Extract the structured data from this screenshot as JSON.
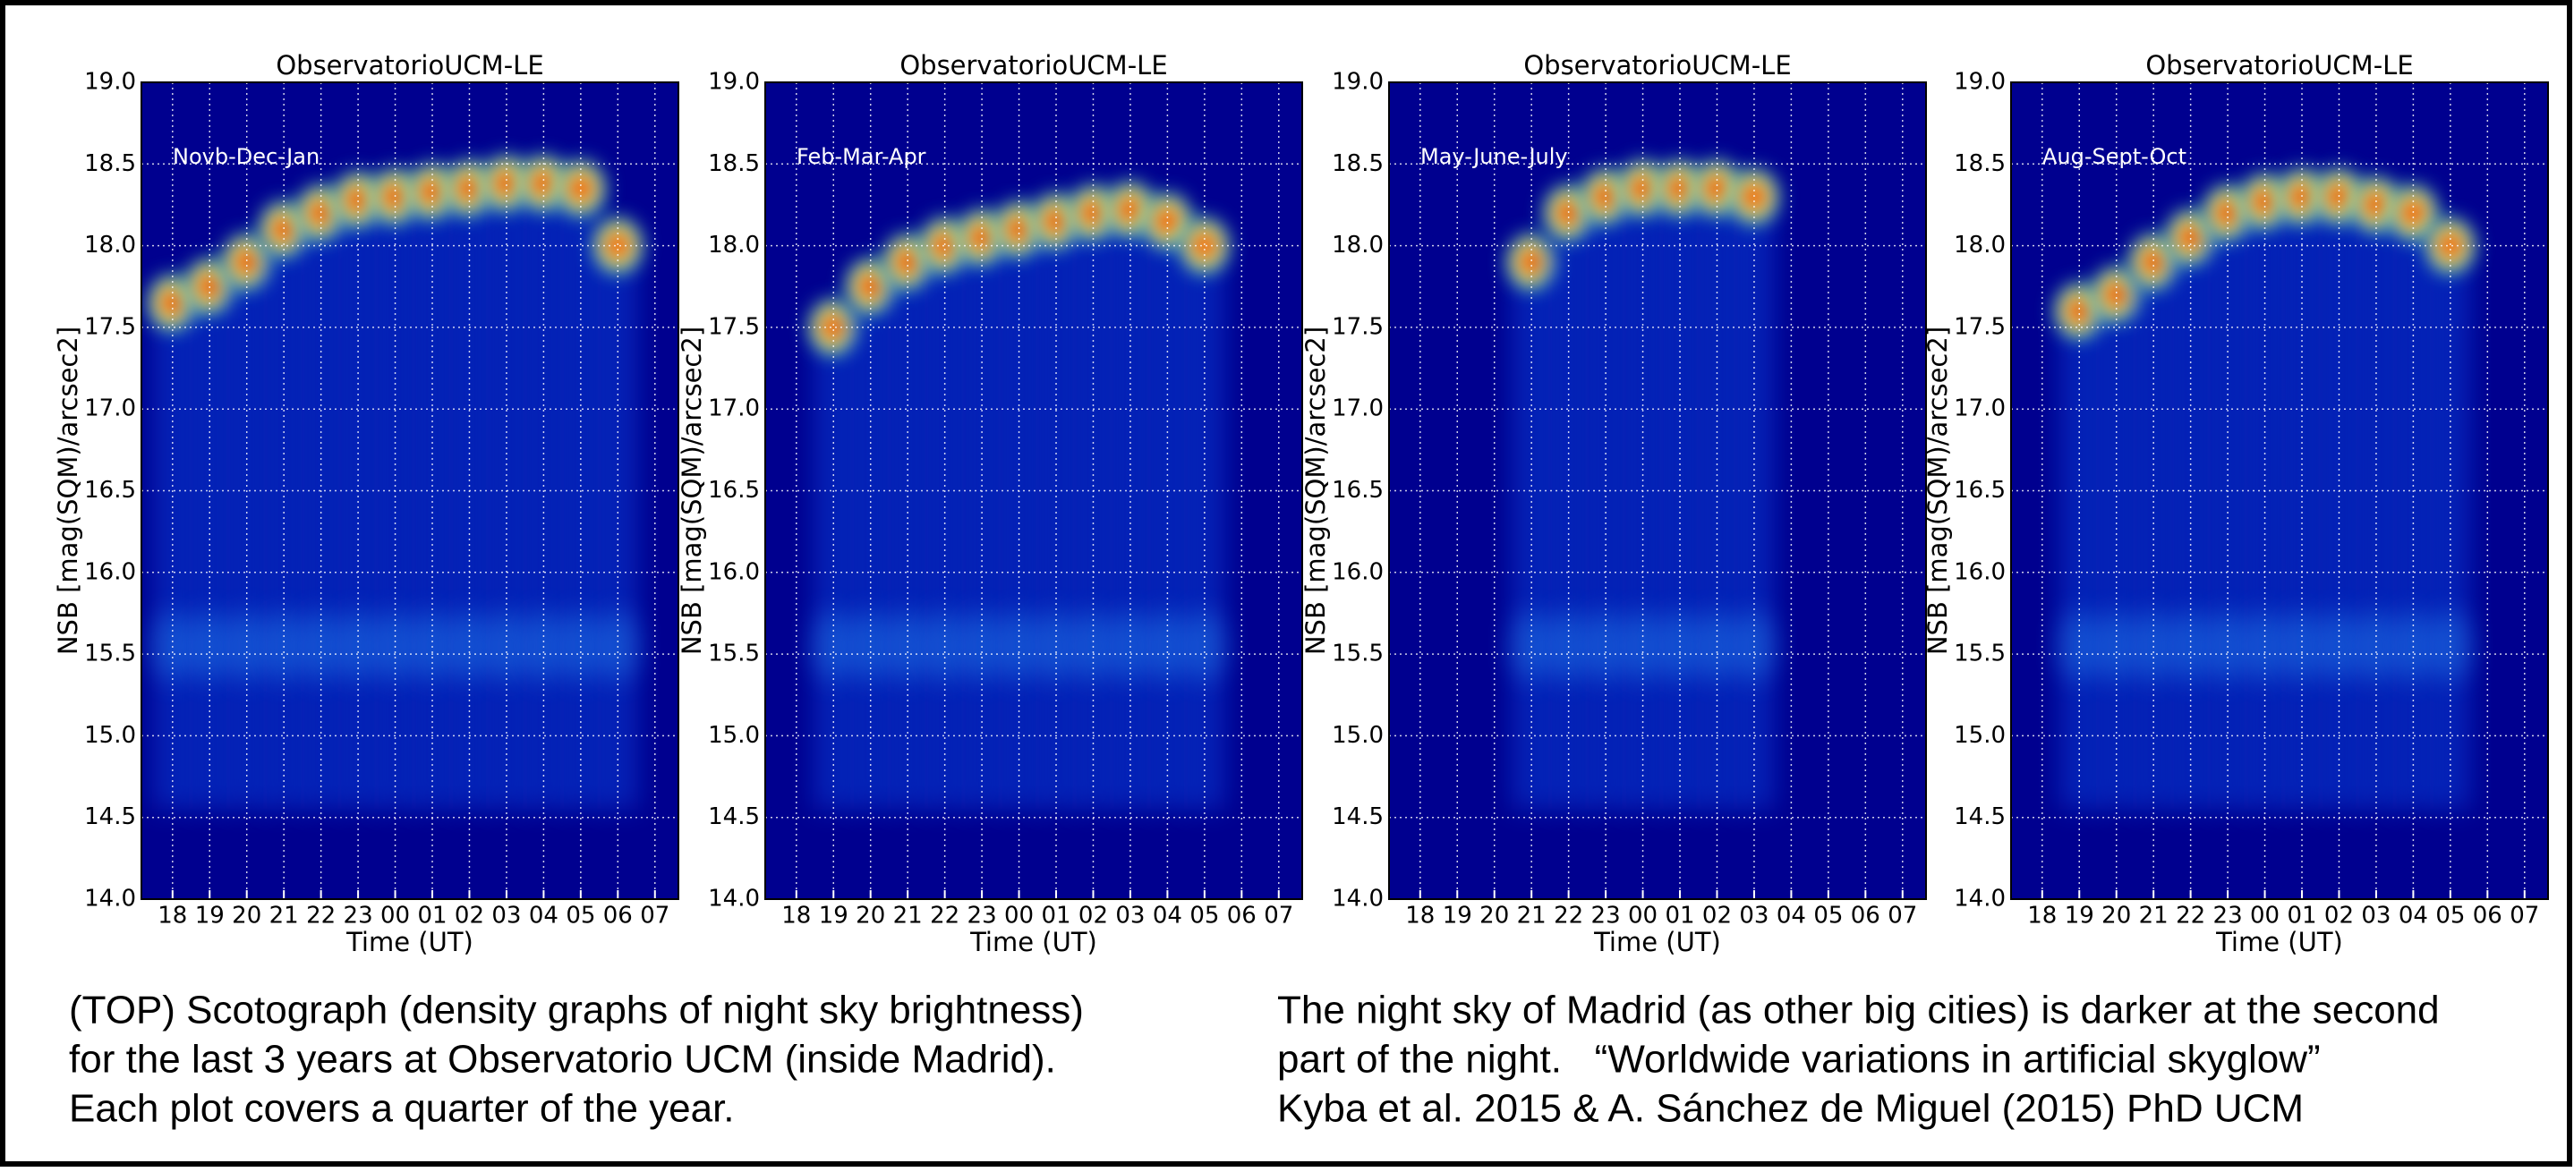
{
  "chart_data": [
    {
      "type": "density",
      "title": "ObservatorioUCM-LE",
      "annotation": "Novb-Dec-Jan",
      "ylabel": "NSB [mag(SQM)/arcsec2]",
      "xlabel": "Time (UT)",
      "categories": [
        "18",
        "19",
        "20",
        "21",
        "22",
        "23",
        "00",
        "01",
        "02",
        "03",
        "04",
        "05",
        "06",
        "07"
      ],
      "values": [
        17.65,
        17.75,
        17.9,
        18.1,
        18.2,
        18.28,
        18.3,
        18.33,
        18.35,
        18.38,
        18.38,
        18.35,
        18.0,
        null
      ],
      "ylim": [
        14,
        19
      ],
      "yticks": [
        {
          "value": 14,
          "label": "14.0"
        },
        {
          "value": 14.5,
          "label": "14.5"
        },
        {
          "value": 15,
          "label": "15.0"
        },
        {
          "value": 15.5,
          "label": "15.5"
        },
        {
          "value": 16,
          "label": "16.0"
        },
        {
          "value": 16.5,
          "label": "16.5"
        },
        {
          "value": 17,
          "label": "17.0"
        },
        {
          "value": 17.5,
          "label": "17.5"
        },
        {
          "value": 18,
          "label": "18.0"
        },
        {
          "value": 18.5,
          "label": "18.5"
        },
        {
          "value": 19,
          "label": "19.0"
        }
      ],
      "grid": true
    },
    {
      "type": "density",
      "title": "ObservatorioUCM-LE",
      "annotation": "Feb-Mar-Apr",
      "ylabel": "NSB [mag(SQM)/arcsec2]",
      "xlabel": "Time (UT)",
      "categories": [
        "18",
        "19",
        "20",
        "21",
        "22",
        "23",
        "00",
        "01",
        "02",
        "03",
        "04",
        "05",
        "06",
        "07"
      ],
      "values": [
        null,
        17.5,
        17.75,
        17.9,
        18.0,
        18.05,
        18.1,
        18.15,
        18.2,
        18.22,
        18.15,
        18.0,
        null,
        null
      ],
      "ylim": [
        14,
        19
      ],
      "yticks": [
        {
          "value": 14,
          "label": "14.0"
        },
        {
          "value": 14.5,
          "label": "14.5"
        },
        {
          "value": 15,
          "label": "15.0"
        },
        {
          "value": 15.5,
          "label": "15.5"
        },
        {
          "value": 16,
          "label": "16.0"
        },
        {
          "value": 16.5,
          "label": "16.5"
        },
        {
          "value": 17,
          "label": "17.0"
        },
        {
          "value": 17.5,
          "label": "17.5"
        },
        {
          "value": 18,
          "label": "18.0"
        },
        {
          "value": 18.5,
          "label": "18.5"
        },
        {
          "value": 19,
          "label": "19.0"
        }
      ],
      "grid": true
    },
    {
      "type": "density",
      "title": "ObservatorioUCM-LE",
      "annotation": "May-June-July",
      "ylabel": "NSB [mag(SQM)/arcsec2]",
      "xlabel": "Time (UT)",
      "categories": [
        "18",
        "19",
        "20",
        "21",
        "22",
        "23",
        "00",
        "01",
        "02",
        "03",
        "04",
        "05",
        "06",
        "07"
      ],
      "values": [
        null,
        null,
        null,
        17.9,
        18.2,
        18.3,
        18.35,
        18.35,
        18.35,
        18.3,
        null,
        null,
        null,
        null
      ],
      "ylim": [
        14,
        19
      ],
      "yticks": [
        {
          "value": 14,
          "label": "14.0"
        },
        {
          "value": 14.5,
          "label": "14.5"
        },
        {
          "value": 15,
          "label": "15.0"
        },
        {
          "value": 15.5,
          "label": "15.5"
        },
        {
          "value": 16,
          "label": "16.0"
        },
        {
          "value": 16.5,
          "label": "16.5"
        },
        {
          "value": 17,
          "label": "17.0"
        },
        {
          "value": 17.5,
          "label": "17.5"
        },
        {
          "value": 18,
          "label": "18.0"
        },
        {
          "value": 18.5,
          "label": "18.5"
        },
        {
          "value": 19,
          "label": "19.0"
        }
      ],
      "grid": true
    },
    {
      "type": "density",
      "title": "ObservatorioUCM-LE",
      "annotation": "Aug-Sept-Oct",
      "ylabel": "NSB [mag(SQM)/arcsec2]",
      "xlabel": "Time (UT)",
      "categories": [
        "18",
        "19",
        "20",
        "21",
        "22",
        "23",
        "00",
        "01",
        "02",
        "03",
        "04",
        "05",
        "06",
        "07"
      ],
      "values": [
        null,
        17.6,
        17.7,
        17.9,
        18.05,
        18.2,
        18.27,
        18.3,
        18.3,
        18.25,
        18.2,
        18.0,
        null,
        null
      ],
      "ylim": [
        14,
        19
      ],
      "yticks": [
        {
          "value": 14,
          "label": "14.0"
        },
        {
          "value": 14.5,
          "label": "14.5"
        },
        {
          "value": 15,
          "label": "15.0"
        },
        {
          "value": 15.5,
          "label": "15.5"
        },
        {
          "value": 16,
          "label": "16.0"
        },
        {
          "value": 16.5,
          "label": "16.5"
        },
        {
          "value": 17,
          "label": "17.0"
        },
        {
          "value": 17.5,
          "label": "17.5"
        },
        {
          "value": 18,
          "label": "18.0"
        },
        {
          "value": 18.5,
          "label": "18.5"
        },
        {
          "value": 19,
          "label": "19.0"
        }
      ],
      "grid": true
    }
  ],
  "captions": {
    "left": [
      "(TOP) Scotograph (density graphs of night sky brightness)",
      "for the last 3 years at Observatorio UCM (inside Madrid).",
      "Each plot covers a quarter of the year."
    ],
    "right": [
      "The night sky of Madrid (as other big cities) is darker at the second",
      "part of the night.   “Worldwide variations in artificial skyglow”",
      "Kyba et al. 2015 & A. Sánchez de Miguel (2015) PhD UCM"
    ]
  }
}
